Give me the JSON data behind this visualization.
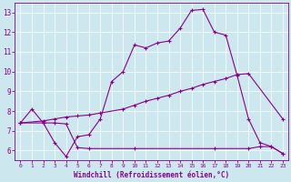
{
  "xlabel": "Windchill (Refroidissement éolien,°C)",
  "bg_color": "#cce8ee",
  "line_color": "#880088",
  "xlim": [
    -0.5,
    23.5
  ],
  "ylim": [
    5.5,
    13.5
  ],
  "yticks": [
    6,
    7,
    8,
    9,
    10,
    11,
    12,
    13
  ],
  "xticks": [
    0,
    1,
    2,
    3,
    4,
    5,
    6,
    7,
    8,
    9,
    10,
    11,
    12,
    13,
    14,
    15,
    16,
    17,
    18,
    19,
    20,
    21,
    22,
    23
  ],
  "line1_x": [
    0,
    1,
    2,
    3,
    4,
    5,
    6,
    7,
    8,
    9,
    10,
    11,
    12,
    13,
    14,
    15,
    16,
    17,
    18,
    19,
    20,
    21,
    22,
    23
  ],
  "line1_y": [
    7.4,
    8.1,
    7.4,
    6.4,
    5.7,
    6.7,
    6.8,
    7.6,
    9.5,
    10.0,
    11.35,
    11.2,
    11.45,
    11.55,
    12.2,
    13.1,
    13.15,
    12.0,
    11.85,
    9.8,
    7.6,
    6.4,
    6.2,
    5.85
  ],
  "line2_x": [
    0,
    2,
    3,
    4,
    5,
    6,
    7,
    9,
    10,
    11,
    12,
    13,
    14,
    15,
    16,
    17,
    18,
    19,
    20,
    23
  ],
  "line2_y": [
    7.4,
    7.5,
    7.6,
    7.7,
    7.75,
    7.8,
    7.9,
    8.1,
    8.3,
    8.5,
    8.65,
    8.8,
    9.0,
    9.15,
    9.35,
    9.5,
    9.65,
    9.85,
    9.9,
    7.6
  ],
  "line3_x": [
    0,
    2,
    3,
    4,
    5,
    6,
    10,
    17,
    20,
    21,
    22,
    23
  ],
  "line3_y": [
    7.4,
    7.4,
    7.4,
    7.35,
    6.15,
    6.1,
    6.1,
    6.1,
    6.1,
    6.2,
    6.2,
    5.85
  ]
}
